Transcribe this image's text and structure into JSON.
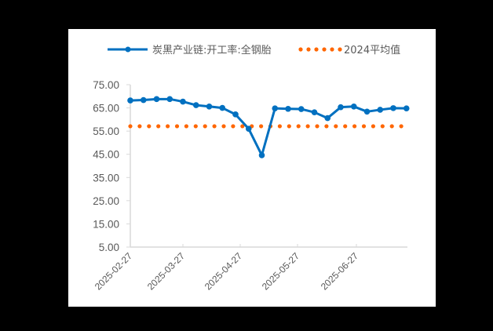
{
  "chart_data": {
    "type": "line",
    "title": "",
    "xlabel": "",
    "ylabel": "",
    "ylim": [
      5,
      75
    ],
    "yticks": [
      5,
      15,
      25,
      35,
      45,
      55,
      65,
      75
    ],
    "ytick_labels": [
      "5.00",
      "15.00",
      "25.00",
      "35.00",
      "45.00",
      "55.00",
      "65.00",
      "75.00"
    ],
    "xtick_labels": [
      "2025-02-27",
      "2025-03-27",
      "2025-04-27",
      "2025-05-27",
      "2025-06-27"
    ],
    "grid": false,
    "legend_position": "top",
    "x": [
      "2025-02-27",
      "2025-03-06",
      "2025-03-13",
      "2025-03-20",
      "2025-03-27",
      "2025-04-03",
      "2025-04-10",
      "2025-04-17",
      "2025-04-24",
      "2025-05-01",
      "2025-05-08",
      "2025-05-15",
      "2025-05-22",
      "2025-05-29",
      "2025-06-05",
      "2025-06-12",
      "2025-06-19",
      "2025-06-26",
      "2025-07-03",
      "2025-07-10",
      "2025-07-17",
      "2025-07-24"
    ],
    "series": [
      {
        "name": "炭黑产业链:开工率:全钢胎",
        "style": "line-marker",
        "color": "#0070C0",
        "values": [
          68.2,
          68.4,
          68.8,
          68.8,
          67.7,
          66.2,
          65.6,
          65.0,
          62.2,
          56.0,
          44.6,
          64.8,
          64.6,
          64.5,
          63.1,
          60.6,
          65.3,
          65.6,
          63.4,
          64.2,
          64.9,
          64.8
        ]
      },
      {
        "name": "2024平均值",
        "style": "dotted",
        "color": "#FF6600",
        "values": [
          57.1,
          57.1,
          57.1,
          57.1,
          57.1,
          57.1,
          57.1,
          57.1,
          57.1,
          57.1,
          57.1,
          57.1,
          57.1,
          57.1,
          57.1,
          57.1,
          57.1,
          57.1,
          57.1,
          57.1,
          57.1,
          57.1
        ]
      }
    ]
  },
  "legend": {
    "series1_label": "炭黑产业链:开工率:全钢胎",
    "series2_label": "2024平均值"
  }
}
